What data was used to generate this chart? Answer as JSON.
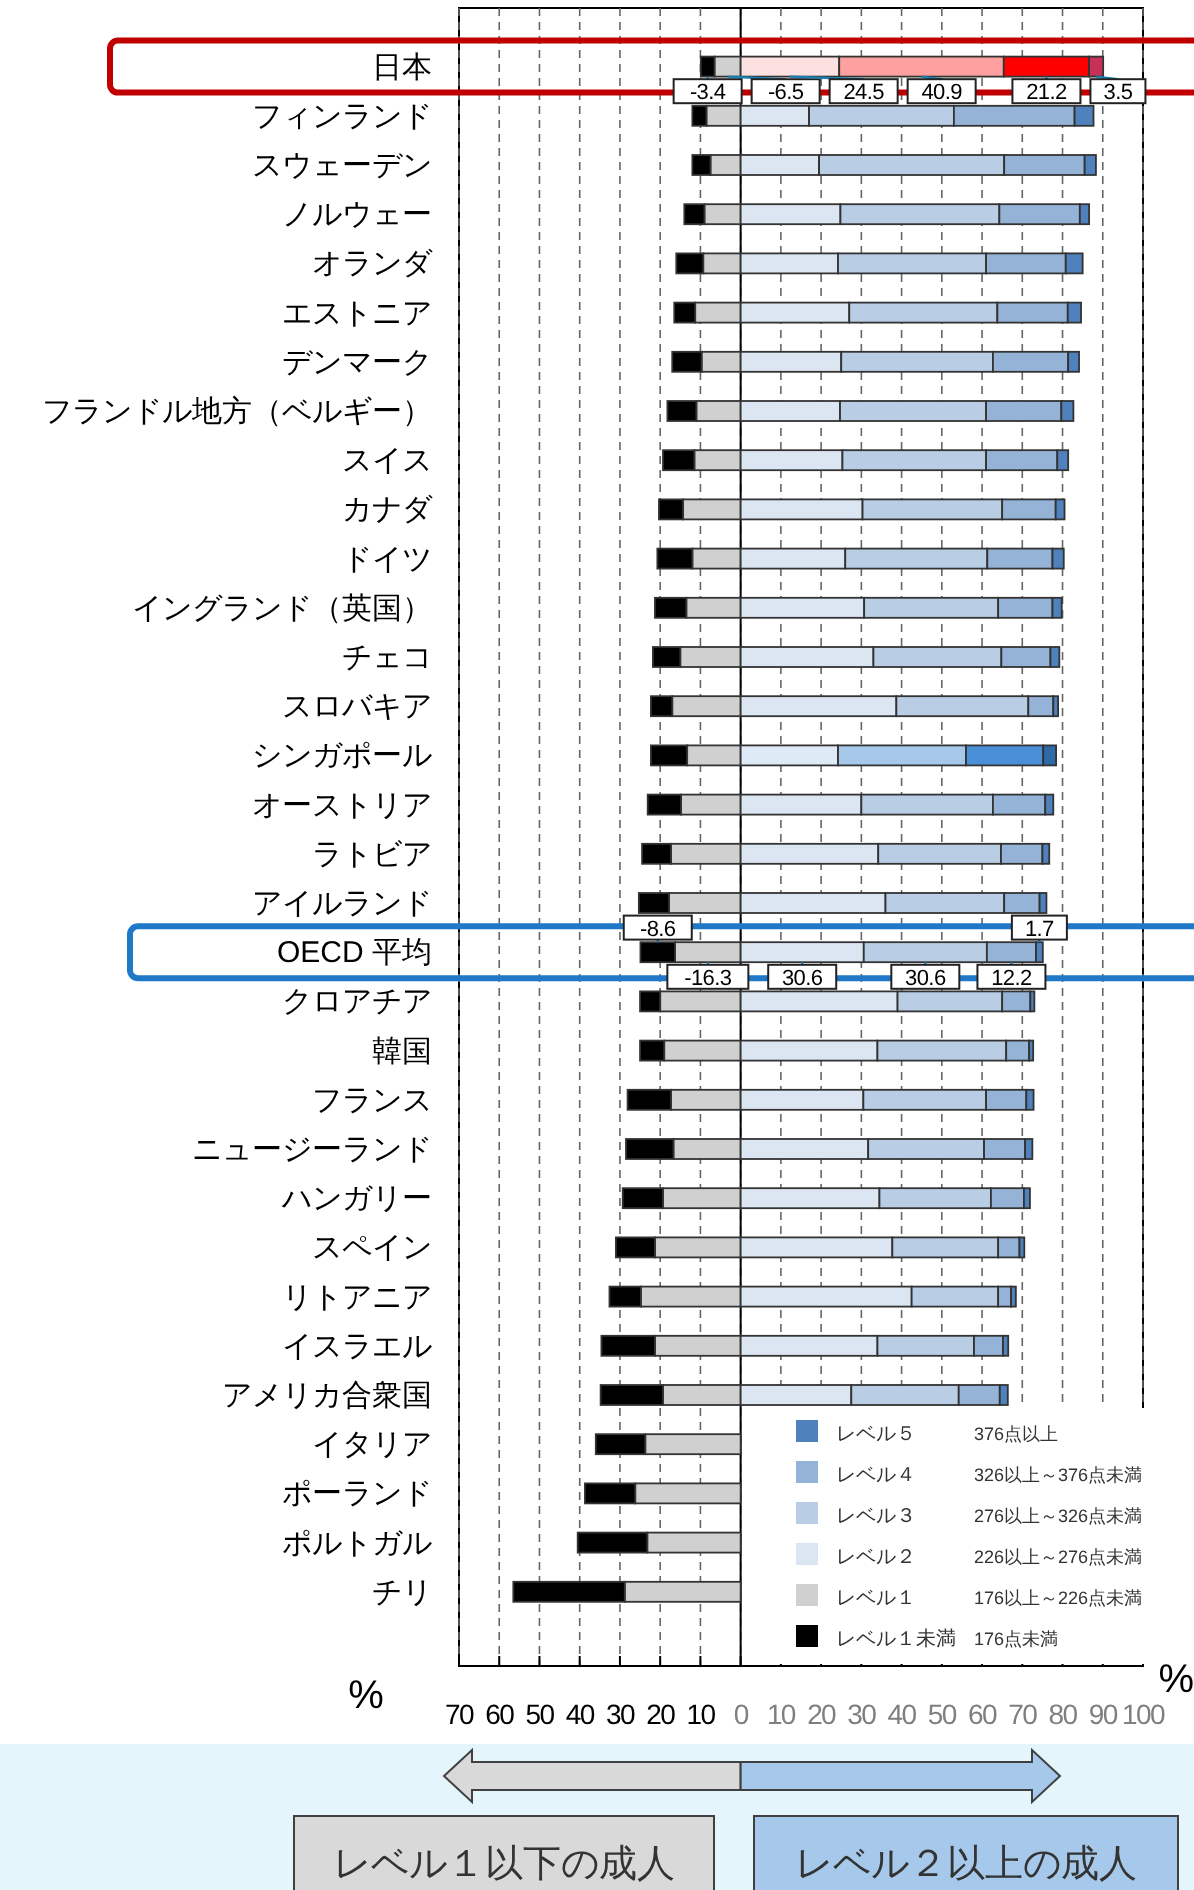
{
  "chart_data": {
    "type": "bar",
    "orientation": "horizontal",
    "stacked": true,
    "categories": [
      "日本",
      "フィンランド",
      "スウェーデン",
      "ノルウェー",
      "オランダ",
      "エストニア",
      "デンマーク",
      "フランドル地方（ベルギー）",
      "スイス",
      "カナダ",
      "ドイツ",
      "イングランド（英国）",
      "チェコ",
      "スロバキア",
      "シンガポール",
      "オーストリア",
      "ラトビア",
      "アイルランド",
      "OECD 平均",
      "クロアチア",
      "韓国",
      "フランス",
      "ニュージーランド",
      "ハンガリー",
      "スペイン",
      "リトアニア",
      "イスラエル",
      "アメリカ合衆国",
      "イタリア",
      "ポーランド",
      "ポルトガル",
      "チリ"
    ],
    "series": [
      {
        "name": "レベル１",
        "color": "#d0d0d0",
        "values": [
          -6.5,
          -8.5,
          -7.5,
          -9.0,
          -9.3,
          -11.3,
          -9.7,
          -11.0,
          -11.5,
          -14.3,
          -12.0,
          -13.5,
          -15.0,
          -17.0,
          -13.3,
          -14.8,
          -17.3,
          -17.8,
          -16.3,
          -20.0,
          -19.0,
          -17.3,
          -16.7,
          -19.3,
          -21.3,
          -24.8,
          -21.3,
          -19.3,
          -23.7,
          -26.2,
          -23.2,
          -28.8
        ],
        "value_labels": [
          "-6.5",
          null,
          null,
          null,
          null,
          null,
          null,
          null,
          null,
          null,
          null,
          null,
          null,
          null,
          null,
          null,
          null,
          null,
          "-16.3",
          null,
          null,
          null,
          null,
          null,
          null,
          null,
          null,
          null,
          null,
          null,
          null,
          null
        ]
      },
      {
        "name": "レベル１未満",
        "color": "#000000",
        "values": [
          -3.4,
          -3.5,
          -4.5,
          -5.0,
          -6.7,
          -5.2,
          -7.3,
          -7.2,
          -7.8,
          -6.0,
          -8.7,
          -7.8,
          -6.8,
          -5.3,
          -9.0,
          -8.3,
          -7.2,
          -7.5,
          -8.6,
          -5.0,
          -6.0,
          -10.8,
          -11.8,
          -10.0,
          -9.7,
          -7.8,
          -13.3,
          -15.5,
          -12.3,
          -12.5,
          -17.3,
          -27.7
        ],
        "value_labels": [
          "-3.4",
          null,
          null,
          null,
          null,
          null,
          null,
          null,
          null,
          null,
          null,
          null,
          null,
          null,
          null,
          null,
          null,
          null,
          "-8.6",
          null,
          null,
          null,
          null,
          null,
          null,
          null,
          null,
          null,
          null,
          null,
          null,
          null
        ]
      },
      {
        "name": "レベル２",
        "color": "#dce6f2",
        "colors": [
          "#fde0e0",
          "#dce6f2",
          "#dce6f2",
          "#dce6f2",
          "#dce6f2",
          "#dce6f2",
          "#dce6f2",
          "#dce6f2",
          "#dce6f2",
          "#dce6f2",
          "#dce6f2",
          "#dce6f2",
          "#dce6f2",
          "#dce6f2",
          "#deebf7",
          "#dce6f2",
          "#dce6f2",
          "#dce6f2",
          "#dce6f2",
          "#dce6f2",
          "#dce6f2",
          "#dce6f2",
          "#dce6f2",
          "#dce6f2",
          "#dce6f2",
          "#dce6f2",
          "#dce6f2",
          "#dce6f2",
          null,
          null,
          null,
          null
        ],
        "values": [
          24.5,
          17.0,
          19.5,
          24.8,
          24.2,
          27.0,
          25.0,
          24.7,
          25.3,
          30.3,
          26.0,
          30.7,
          33.0,
          38.7,
          24.2,
          30.0,
          34.2,
          36.0,
          30.6,
          39.0,
          34.0,
          30.5,
          31.7,
          34.5,
          37.7,
          42.5,
          34.0,
          27.5,
          null,
          null,
          null,
          null
        ],
        "value_labels": [
          "24.5",
          null,
          null,
          null,
          null,
          null,
          null,
          null,
          null,
          null,
          null,
          null,
          null,
          null,
          null,
          null,
          null,
          null,
          "30.6",
          null,
          null,
          null,
          null,
          null,
          null,
          null,
          null,
          null,
          null,
          null,
          null,
          null
        ]
      },
      {
        "name": "レベル３",
        "color": "#b9cde5",
        "colors": [
          "#ffa0a0",
          "#b9cde5",
          "#b9cde5",
          "#b9cde5",
          "#b9cde5",
          "#b9cde5",
          "#b9cde5",
          "#b9cde5",
          "#b9cde5",
          "#b9cde5",
          "#b9cde5",
          "#b9cde5",
          "#b9cde5",
          "#b9cde5",
          "#a6c8ea",
          "#b9cde5",
          "#b9cde5",
          "#b9cde5",
          "#b9cde5",
          "#b9cde5",
          "#b9cde5",
          "#b9cde5",
          "#b9cde5",
          "#b9cde5",
          "#b9cde5",
          "#b9cde5",
          "#b9cde5",
          "#b9cde5",
          null,
          null,
          null,
          null
        ],
        "values": [
          40.9,
          36.0,
          46.0,
          39.5,
          36.8,
          36.8,
          37.7,
          36.3,
          35.7,
          34.7,
          35.3,
          33.3,
          31.8,
          32.8,
          31.8,
          32.7,
          30.5,
          29.5,
          30.6,
          26.0,
          32.0,
          30.5,
          28.8,
          27.7,
          26.3,
          21.5,
          24.0,
          26.7,
          null,
          null,
          null,
          null
        ],
        "value_labels": [
          "40.9",
          null,
          null,
          null,
          null,
          null,
          null,
          null,
          null,
          null,
          null,
          null,
          null,
          null,
          null,
          null,
          null,
          null,
          "30.6",
          null,
          null,
          null,
          null,
          null,
          null,
          null,
          null,
          null,
          null,
          null,
          null,
          null
        ]
      },
      {
        "name": "レベル４",
        "color": "#95b3d7",
        "colors": [
          "#ff0000",
          "#95b3d7",
          "#95b3d7",
          "#95b3d7",
          "#95b3d7",
          "#95b3d7",
          "#95b3d7",
          "#95b3d7",
          "#95b3d7",
          "#95b3d7",
          "#95b3d7",
          "#95b3d7",
          "#95b3d7",
          "#95b3d7",
          "#4a90d9",
          "#95b3d7",
          "#95b3d7",
          "#95b3d7",
          "#95b3d7",
          "#95b3d7",
          "#95b3d7",
          "#95b3d7",
          "#95b3d7",
          "#95b3d7",
          "#95b3d7",
          "#95b3d7",
          "#95b3d7",
          "#95b3d7",
          null,
          null,
          null,
          null
        ],
        "values": [
          21.2,
          30.0,
          20.0,
          20.0,
          19.8,
          17.5,
          18.7,
          18.7,
          17.7,
          13.3,
          16.2,
          13.5,
          12.2,
          6.2,
          19.2,
          13.0,
          10.3,
          8.8,
          12.2,
          7.0,
          5.7,
          10.0,
          10.2,
          8.2,
          5.3,
          3.2,
          7.2,
          10.2,
          null,
          null,
          null,
          null
        ],
        "value_labels": [
          "21.2",
          null,
          null,
          null,
          null,
          null,
          null,
          null,
          null,
          null,
          null,
          null,
          null,
          null,
          null,
          null,
          null,
          null,
          "12.2",
          null,
          null,
          null,
          null,
          null,
          null,
          null,
          null,
          null,
          null,
          null,
          null,
          null
        ]
      },
      {
        "name": "レベル５",
        "color": "#4f81bd",
        "colors": [
          "#c8305a",
          "#4f81bd",
          "#4f81bd",
          "#4f81bd",
          "#4f81bd",
          "#4f81bd",
          "#4f81bd",
          "#4f81bd",
          "#4f81bd",
          "#4f81bd",
          "#4f81bd",
          "#4f81bd",
          "#4f81bd",
          "#4f81bd",
          "#2e6aa8",
          "#4f81bd",
          "#4f81bd",
          "#4f81bd",
          "#4f81bd",
          "#4f81bd",
          "#4f81bd",
          "#4f81bd",
          "#4f81bd",
          "#4f81bd",
          "#4f81bd",
          "#4f81bd",
          "#4f81bd",
          "#4f81bd",
          null,
          null,
          null,
          null
        ],
        "values": [
          3.5,
          4.7,
          2.8,
          2.3,
          4.2,
          3.3,
          2.7,
          3.0,
          2.7,
          2.2,
          2.8,
          2.3,
          2.2,
          1.2,
          3.2,
          2.0,
          1.7,
          1.7,
          1.7,
          1.0,
          1.0,
          1.8,
          1.8,
          1.5,
          1.2,
          1.2,
          1.3,
          2.0,
          null,
          null,
          null,
          null
        ],
        "value_labels": [
          "3.5",
          null,
          null,
          null,
          null,
          null,
          null,
          null,
          null,
          null,
          null,
          null,
          null,
          null,
          null,
          null,
          null,
          null,
          "1.7",
          null,
          null,
          null,
          null,
          null,
          null,
          null,
          null,
          null,
          null,
          null,
          null,
          null
        ]
      }
    ],
    "xlim": [
      -70,
      100
    ],
    "xticks": [
      {
        "value": -70,
        "label": "70"
      },
      {
        "value": -60,
        "label": "60"
      },
      {
        "value": -50,
        "label": "50"
      },
      {
        "value": -40,
        "label": "40"
      },
      {
        "value": -30,
        "label": "30"
      },
      {
        "value": -20,
        "label": "20"
      },
      {
        "value": -10,
        "label": "10"
      },
      0,
      10,
      20,
      30,
      40,
      50,
      60,
      70,
      80,
      90,
      100
    ],
    "xlabel": "%",
    "grid": "x",
    "ref_lines": [
      {
        "axis": "x",
        "value": 0,
        "line_style": "solid"
      }
    ],
    "legend": "bottom right",
    "annotations": [
      "376点以上",
      "326以上～376点未満",
      "276以上～326点未満",
      "226以上～276点未満",
      "176以上～226点未満",
      "176点未満",
      "レベル１以下の成人",
      "レベル２以上の成人",
      "%"
    ]
  }
}
